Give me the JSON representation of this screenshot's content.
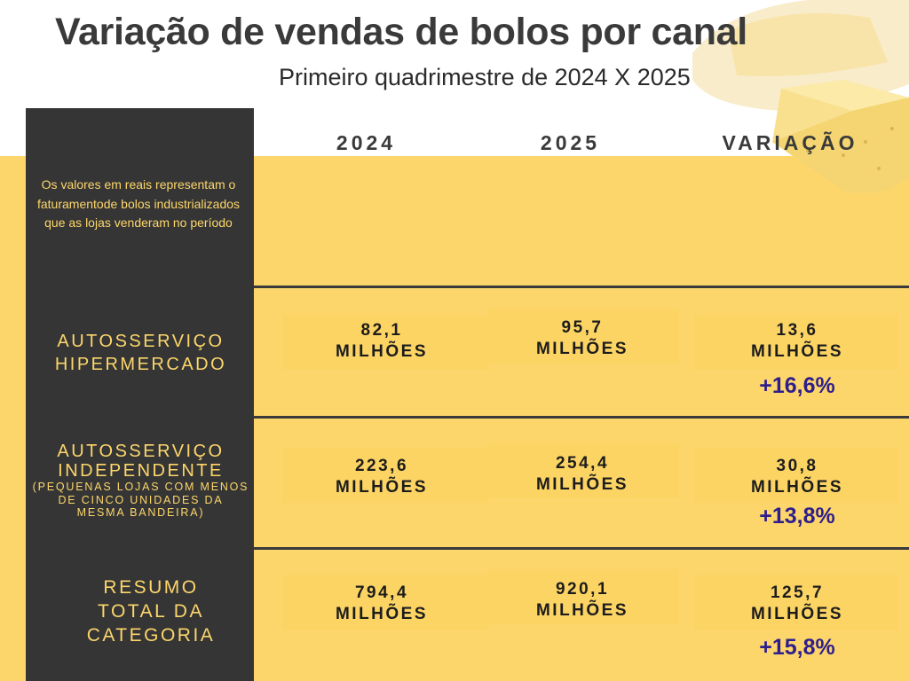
{
  "header": {
    "title": "Variação de vendas  de bolos por canal",
    "subtitle": "Primeiro quadrimestre de 2024 X 2025"
  },
  "note": "Os valores em reais representam o  faturamentode bolos industrializados que as lojas venderam no período",
  "colors": {
    "background_band": "#fdd66b",
    "sidebar": "#353535",
    "label_text": "#fdd66b",
    "percent_text": "#2e1e8c"
  },
  "decor": {
    "image": "cheese-cake-icon"
  },
  "chart_data": {
    "type": "table",
    "columns": [
      "2024",
      "2025",
      "VARIAÇÃO"
    ],
    "rows": [
      {
        "label": "AUTOSSERVIÇO HIPERMERCADO",
        "sublabel": "",
        "v2024": "82,1",
        "v2025": "95,7",
        "variation": "13,6",
        "unit": "MILHÕES",
        "percent": "+16,6%"
      },
      {
        "label": "AUTOSSERVIÇO INDEPENDENTE",
        "sublabel": "(PEQUENAS LOJAS COM MENOS DE CINCO UNIDADES DA MESMA BANDEIRA)",
        "v2024": "223,6",
        "v2025": "254,4",
        "variation": "30,8",
        "unit": "MILHÕES",
        "percent": "+13,8%"
      },
      {
        "label": "RESUMO TOTAL DA CATEGORIA",
        "sublabel": "",
        "v2024": "794,4",
        "v2025": "920,1",
        "variation": "125,7",
        "unit": "MILHÕES",
        "percent": "+15,8%"
      }
    ]
  }
}
